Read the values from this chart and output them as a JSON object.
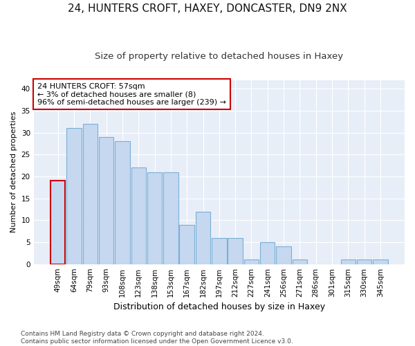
{
  "title1": "24, HUNTERS CROFT, HAXEY, DONCASTER, DN9 2NX",
  "title2": "Size of property relative to detached houses in Haxey",
  "xlabel": "Distribution of detached houses by size in Haxey",
  "ylabel": "Number of detached properties",
  "categories": [
    "49sqm",
    "64sqm",
    "79sqm",
    "93sqm",
    "108sqm",
    "123sqm",
    "138sqm",
    "153sqm",
    "167sqm",
    "182sqm",
    "197sqm",
    "212sqm",
    "227sqm",
    "241sqm",
    "256sqm",
    "271sqm",
    "286sqm",
    "301sqm",
    "315sqm",
    "330sqm",
    "345sqm"
  ],
  "values": [
    19,
    31,
    32,
    29,
    28,
    22,
    21,
    21,
    9,
    12,
    6,
    6,
    1,
    5,
    4,
    1,
    0,
    0,
    1,
    1,
    1
  ],
  "bar_color": "#c5d8f0",
  "bar_edge_color": "#7aafd4",
  "highlight_bar_index": 0,
  "highlight_edge_color": "#cc0000",
  "annotation_box_text": "24 HUNTERS CROFT: 57sqm\n← 3% of detached houses are smaller (8)\n96% of semi-detached houses are larger (239) →",
  "annotation_box_facecolor": "#ffffff",
  "annotation_box_edgecolor": "#cc0000",
  "ylim": [
    0,
    42
  ],
  "yticks": [
    0,
    5,
    10,
    15,
    20,
    25,
    30,
    35,
    40
  ],
  "fig_facecolor": "#ffffff",
  "bg_color": "#e8eef8",
  "grid_color": "#ffffff",
  "title1_fontsize": 11,
  "title2_fontsize": 9.5,
  "xlabel_fontsize": 9,
  "ylabel_fontsize": 8,
  "tick_fontsize": 7.5,
  "annot_fontsize": 8,
  "footnote_fontsize": 6.5,
  "footnote": "Contains HM Land Registry data © Crown copyright and database right 2024.\nContains public sector information licensed under the Open Government Licence v3.0."
}
